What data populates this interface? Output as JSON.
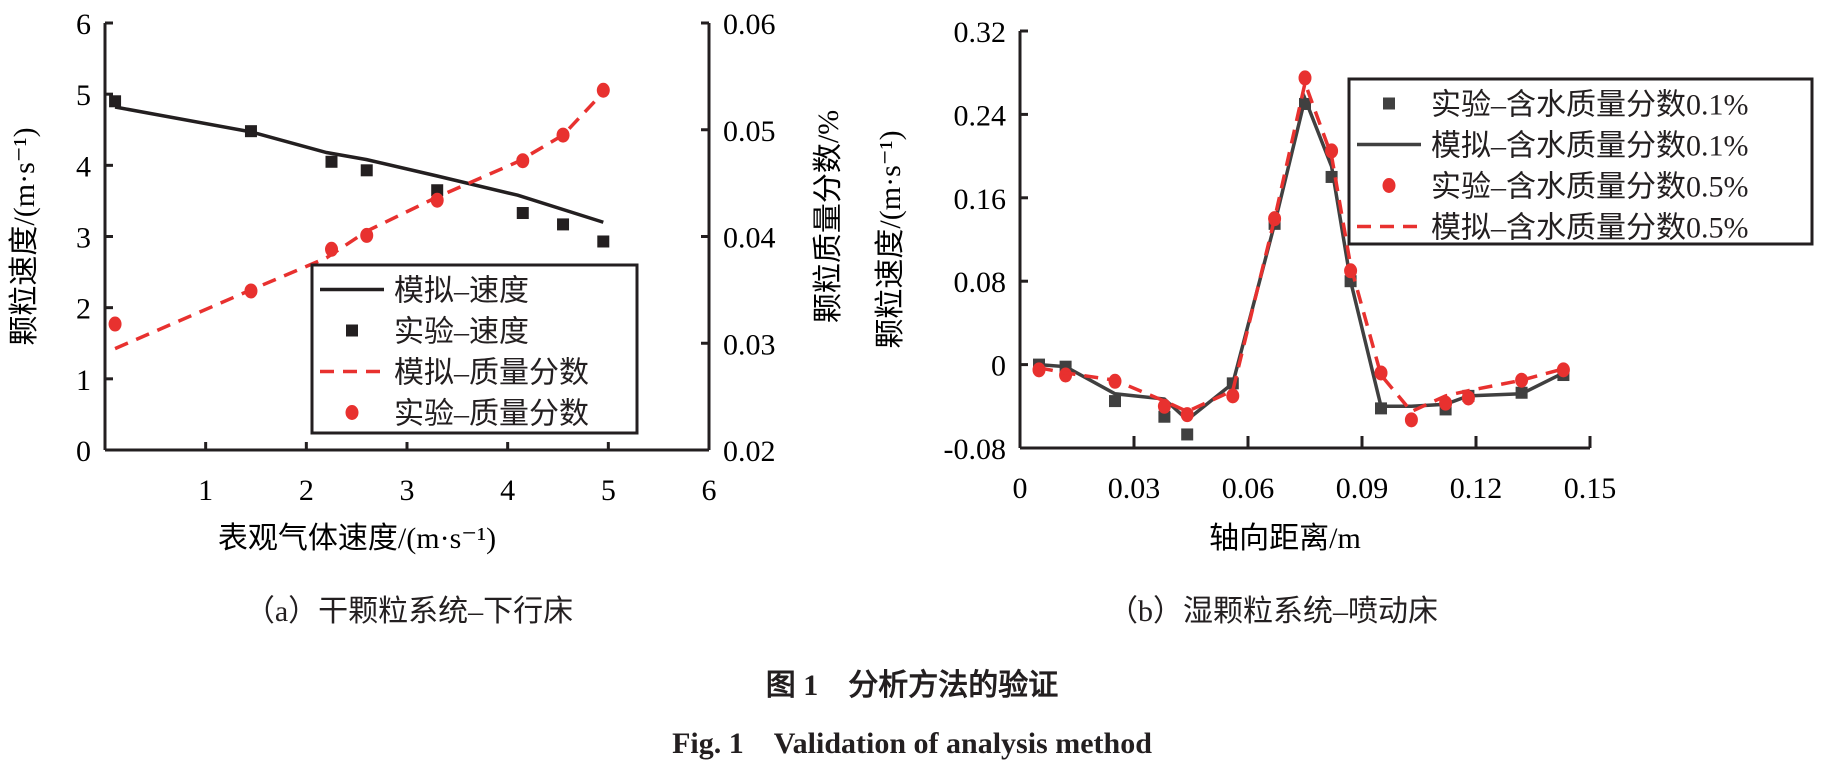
{
  "chart_data": [
    {
      "type": "line",
      "caption": "（a）干颗粒系统–下行床",
      "xlabel": "表观气体速度/(m·s⁻¹)",
      "ylabel": "颗粒速度/(m·s⁻¹)",
      "y2label": "颗粒质量分数/%",
      "xlim": [
        0,
        6
      ],
      "ylim": [
        0,
        6
      ],
      "y2lim": [
        0.02,
        0.06
      ],
      "xticks": [
        "1",
        "2",
        "3",
        "4",
        "5",
        "6"
      ],
      "yticks": [
        "0",
        "1",
        "2",
        "3",
        "4",
        "5",
        "6"
      ],
      "y2ticks": [
        "0.02",
        "0.03",
        "0.04",
        "0.05",
        "0.06"
      ],
      "legend_position": "center-right",
      "series": [
        {
          "name": "模拟–速度",
          "style": "solid",
          "axis": "left",
          "color": "#231f20",
          "x": [
            0.1,
            1.45,
            2.2,
            2.6,
            3.3,
            4.1,
            4.95
          ],
          "y": [
            4.82,
            4.47,
            4.18,
            4.08,
            3.85,
            3.58,
            3.2
          ]
        },
        {
          "name": "实验–速度",
          "style": "square",
          "axis": "left",
          "color": "#231f20",
          "x": [
            0.1,
            1.45,
            2.25,
            2.6,
            3.3,
            4.15,
            4.55,
            4.95
          ],
          "y": [
            4.9,
            4.48,
            4.05,
            3.93,
            3.65,
            3.33,
            3.17,
            2.93
          ]
        },
        {
          "name": "模拟–质量分数",
          "style": "dashed",
          "axis": "right",
          "color": "#e8312f",
          "x": [
            0.1,
            1.45,
            2.2,
            2.6,
            3.3,
            4.1,
            4.55,
            4.95
          ],
          "y": [
            0.0295,
            0.035,
            0.038,
            0.0405,
            0.0437,
            0.047,
            0.0495,
            0.0535
          ]
        },
        {
          "name": "实验–质量分数",
          "style": "circle",
          "axis": "right",
          "color": "#e8312f",
          "x": [
            0.1,
            1.45,
            2.25,
            2.6,
            3.3,
            4.15,
            4.55,
            4.95
          ],
          "y": [
            0.0318,
            0.0349,
            0.0388,
            0.0401,
            0.0434,
            0.0471,
            0.0495,
            0.0537
          ]
        }
      ]
    },
    {
      "type": "line",
      "caption": "（b）湿颗粒系统–喷动床",
      "xlabel": "轴向距离/m",
      "ylabel": "颗粒速度/(m·s⁻¹)",
      "xlim": [
        0,
        0.15
      ],
      "ylim": [
        -0.08,
        0.32
      ],
      "xticks": [
        "0",
        "0.03",
        "0.06",
        "0.09",
        "0.12",
        "0.15"
      ],
      "yticks": [
        "-0.08",
        "0",
        "0.08",
        "0.16",
        "0.24",
        "0.32"
      ],
      "legend_position": "top-right",
      "series": [
        {
          "name": "实验–含水质量分数0.1%",
          "style": "square",
          "color": "#404040",
          "x": [
            0.005,
            0.012,
            0.025,
            0.038,
            0.044,
            0.056,
            0.067,
            0.075,
            0.082,
            0.087,
            0.095,
            0.112,
            0.118,
            0.132,
            0.143
          ],
          "y": [
            0,
            -0.002,
            -0.035,
            -0.05,
            -0.067,
            -0.018,
            0.135,
            0.25,
            0.18,
            0.08,
            -0.042,
            -0.043,
            -0.03,
            -0.027,
            -0.01
          ]
        },
        {
          "name": "模拟–含水质量分数0.1%",
          "style": "solid",
          "color": "#404040",
          "x": [
            0.005,
            0.012,
            0.025,
            0.038,
            0.044,
            0.056,
            0.067,
            0.075,
            0.082,
            0.087,
            0.095,
            0.103,
            0.112,
            0.118,
            0.132,
            0.143
          ],
          "y": [
            0,
            -0.002,
            -0.028,
            -0.033,
            -0.053,
            -0.018,
            0.135,
            0.255,
            0.19,
            0.08,
            -0.04,
            -0.04,
            -0.038,
            -0.03,
            -0.028,
            -0.008
          ]
        },
        {
          "name": "实验–含水质量分数0.5%",
          "style": "circle",
          "color": "#e8312f",
          "x": [
            0.005,
            0.012,
            0.025,
            0.038,
            0.044,
            0.056,
            0.067,
            0.075,
            0.082,
            0.087,
            0.095,
            0.103,
            0.112,
            0.118,
            0.132,
            0.143
          ],
          "y": [
            -0.005,
            -0.01,
            -0.016,
            -0.04,
            -0.048,
            -0.03,
            0.14,
            0.275,
            0.205,
            0.09,
            -0.008,
            -0.053,
            -0.037,
            -0.032,
            -0.015,
            -0.005
          ]
        },
        {
          "name": "模拟–含水质量分数0.5%",
          "style": "dashed",
          "color": "#e8312f",
          "x": [
            0.005,
            0.012,
            0.025,
            0.038,
            0.044,
            0.056,
            0.067,
            0.075,
            0.082,
            0.087,
            0.095,
            0.103,
            0.112,
            0.118,
            0.132,
            0.143
          ],
          "y": [
            -0.003,
            -0.008,
            -0.015,
            -0.035,
            -0.045,
            -0.025,
            0.14,
            0.27,
            0.2,
            0.095,
            -0.01,
            -0.045,
            -0.03,
            -0.025,
            -0.015,
            -0.004
          ]
        }
      ]
    }
  ],
  "figure": {
    "title_cn": "图 1　分析方法的验证",
    "title_en": "Fig. 1　Validation of analysis method"
  }
}
